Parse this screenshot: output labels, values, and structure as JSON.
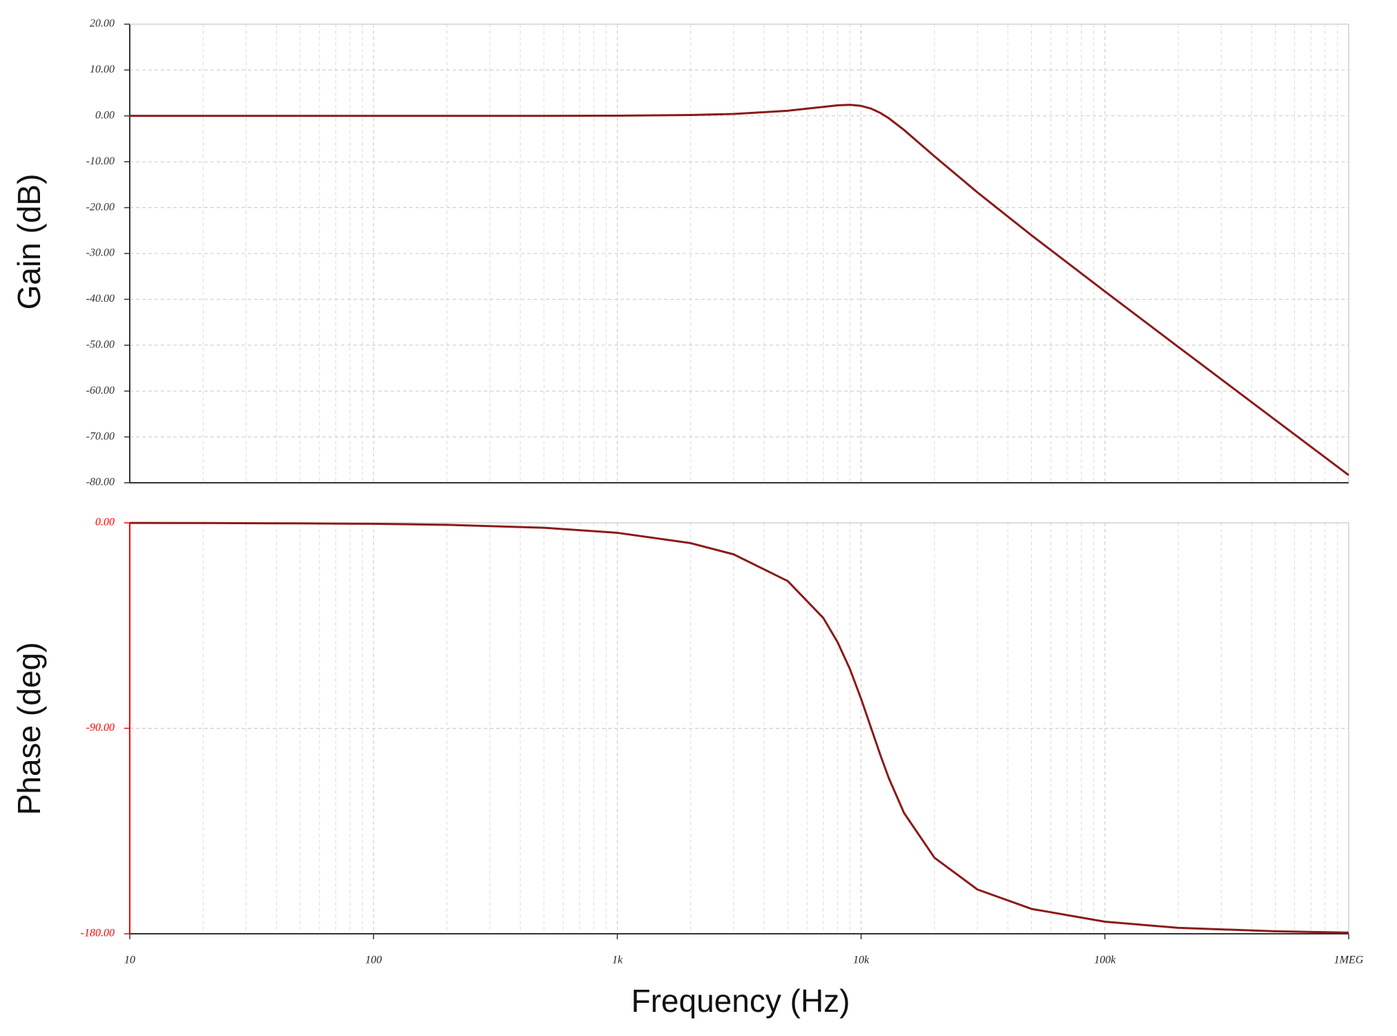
{
  "chart_data": [
    {
      "type": "line",
      "ylabel": "Gain (dB)",
      "xscale": "log",
      "grid": true,
      "axis_color": "#333333",
      "xlim": [
        10,
        1000000
      ],
      "ylim": [
        -80,
        20
      ],
      "yticks": [
        {
          "value": 20,
          "label": "20.00"
        },
        {
          "value": 10,
          "label": "10.00"
        },
        {
          "value": 0,
          "label": "0.00"
        },
        {
          "value": -10,
          "label": "-10.00"
        },
        {
          "value": -20,
          "label": "-20.00"
        },
        {
          "value": -30,
          "label": "-30.00"
        },
        {
          "value": -40,
          "label": "-40.00"
        },
        {
          "value": -50,
          "label": "-50.00"
        },
        {
          "value": -60,
          "label": "-60.00"
        },
        {
          "value": -70,
          "label": "-70.00"
        },
        {
          "value": -80,
          "label": "-80.00"
        }
      ],
      "x": [
        10,
        20,
        50,
        100,
        200,
        500,
        1000,
        2000,
        3000,
        5000,
        7000,
        8000,
        9000,
        10000,
        11000,
        12000,
        13000,
        15000,
        20000,
        30000,
        50000,
        100000,
        200000,
        500000,
        1000000
      ],
      "series": [
        {
          "color": "#8b1a1a",
          "values": [
            0,
            0,
            0,
            0,
            0,
            0.01,
            0.05,
            0.19,
            0.42,
            1.12,
            1.97,
            2.3,
            2.41,
            2.19,
            1.58,
            0.64,
            -0.52,
            -3.07,
            -8.82,
            -16.68,
            -26.03,
            -38.28,
            -50.37,
            -66.3,
            -78.34
          ]
        }
      ]
    },
    {
      "type": "line",
      "ylabel": "Phase (deg)",
      "xlabel": "Frequency (Hz)",
      "xscale": "log",
      "grid": true,
      "axis_color": "#ff0000",
      "xlim": [
        10,
        1000000
      ],
      "ylim": [
        -180,
        0
      ],
      "xticks": [
        10,
        100,
        {
          "value": 1000,
          "label": "1k"
        },
        {
          "value": 10000,
          "label": "10k"
        },
        {
          "value": 100000,
          "label": "100k"
        },
        {
          "value": 1000000,
          "label": "1MEG"
        }
      ],
      "yticks": [
        {
          "value": 0,
          "label": "0.00"
        },
        {
          "value": -90,
          "label": "-90.00"
        },
        {
          "value": -180,
          "label": "-180.00"
        }
      ],
      "x": [
        10,
        20,
        50,
        100,
        200,
        500,
        1000,
        2000,
        3000,
        5000,
        7000,
        8000,
        9000,
        10000,
        11000,
        12000,
        13000,
        15000,
        20000,
        30000,
        50000,
        100000,
        200000,
        500000,
        1000000
      ],
      "series": [
        {
          "color": "#8b1a1a",
          "values": [
            -0.04,
            -0.09,
            -0.22,
            -0.43,
            -0.87,
            -2.17,
            -4.37,
            -8.9,
            -13.8,
            -25.5,
            -41.7,
            -52.2,
            -64.1,
            -77.1,
            -90,
            -101.8,
            -111.9,
            -127.1,
            -146.7,
            -160.6,
            -169.1,
            -174.7,
            -177.4,
            -178.9,
            -179.5
          ]
        }
      ]
    }
  ]
}
